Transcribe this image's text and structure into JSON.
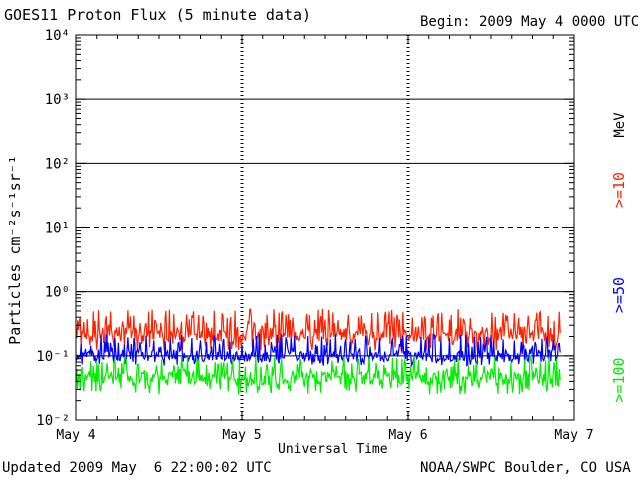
{
  "header": {
    "title": "GOES11 Proton Flux (5 minute data)",
    "begin": "Begin: 2009 May 4 0000 UTC"
  },
  "footer": {
    "updated": "Updated 2009 May  6 22:00:02 UTC",
    "credit": "NOAA/SWPC Boulder, CO USA"
  },
  "chart_data": {
    "type": "line",
    "title": "GOES11 Proton Flux (5 minute data)",
    "xlabel": "Universal Time",
    "ylabel": "Particles cm⁻²s⁻¹sr⁻¹",
    "yscale": "log",
    "ylim": [
      0.01,
      10000
    ],
    "y_ticks": [
      "10⁻²",
      "10⁻¹",
      "10⁰",
      "10¹",
      "10²",
      "10³",
      "10⁴"
    ],
    "x_ticks": [
      "May 4",
      "May 5",
      "May 6",
      "May 7"
    ],
    "xlim_days": [
      "2009-05-04",
      "2009-05-07"
    ],
    "data_end": "2009-05-06 22:00 UTC",
    "grid": true,
    "reference_lines": [
      {
        "y": 0.1,
        "style": "solid"
      },
      {
        "y": 1,
        "style": "solid"
      },
      {
        "y": 10,
        "style": "dashed"
      },
      {
        "y": 100,
        "style": "solid"
      },
      {
        "y": 1000,
        "style": "solid"
      }
    ],
    "legend_unit": "MeV",
    "series": [
      {
        "name": ">=10",
        "color": "#ff2200",
        "typical_range": [
          0.12,
          0.55
        ],
        "median": 0.22
      },
      {
        "name": ">=50",
        "color": "#0000ff",
        "typical_range": [
          0.07,
          0.22
        ],
        "median": 0.1
      },
      {
        "name": ">=100",
        "color": "#00ee00",
        "typical_range": [
          0.025,
          0.1
        ],
        "median": 0.045
      }
    ]
  }
}
